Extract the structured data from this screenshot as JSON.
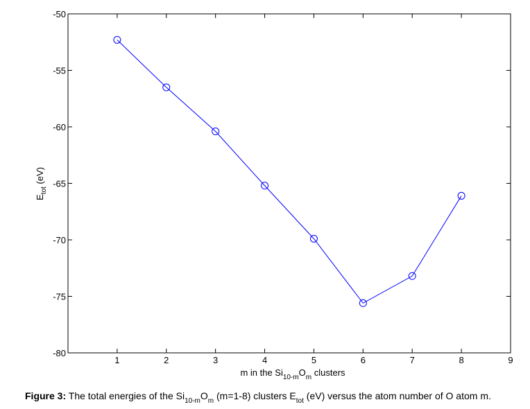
{
  "chart_data": {
    "type": "line",
    "x": [
      1,
      2,
      3,
      4,
      5,
      6,
      7,
      8
    ],
    "series": [
      {
        "values": [
          -52.3,
          -56.5,
          -60.4,
          -65.2,
          -69.9,
          -75.6,
          -73.2,
          -66.1
        ],
        "color": "#0000ff",
        "marker": "open-circle"
      }
    ],
    "xlim": [
      0,
      9
    ],
    "ylim": [
      -80,
      -50
    ],
    "x_ticks": [
      "1",
      "2",
      "3",
      "4",
      "5",
      "6",
      "7",
      "8",
      "9"
    ],
    "y_ticks": [
      "-50",
      "-55",
      "-60",
      "-65",
      "-70",
      "-75",
      "-80"
    ],
    "xlabel": {
      "pre": "m in the Si",
      "sub1": "10-m",
      "mid": "O",
      "sub2": "m",
      "post": " clusters"
    },
    "ylabel": {
      "main": "E",
      "sub": "tot",
      "post": " (eV)"
    },
    "grid": false
  },
  "caption": {
    "label": "Figure 3:",
    "text1": " The total energies of the Si",
    "sub1": "10-m",
    "text2": "O",
    "sub2": "m",
    "text3": " (m=1-8) clusters E",
    "sub3": "tot",
    "text4": " (eV) versus the atom number of O atom m."
  }
}
